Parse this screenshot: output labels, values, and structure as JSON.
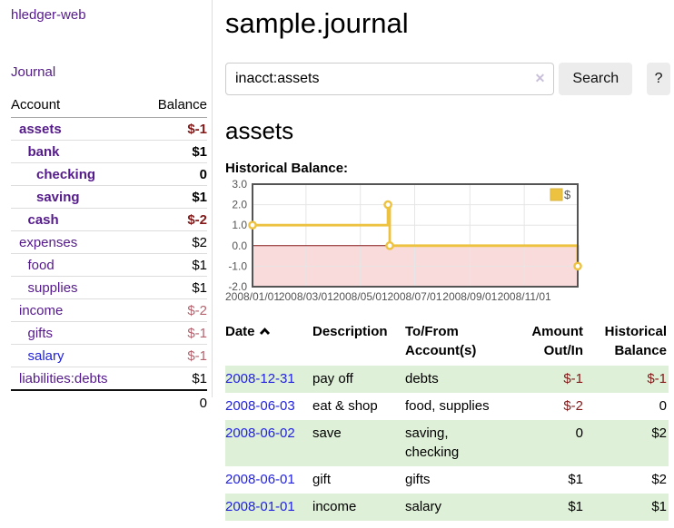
{
  "app": {
    "title": "hledger-web"
  },
  "sidebar": {
    "journal_link": "Journal",
    "accounts": {
      "headers": {
        "account": "Account",
        "balance": "Balance"
      },
      "rows": [
        {
          "name": "assets",
          "balance": "$-1",
          "level": 1,
          "bold": true,
          "neg": "strong"
        },
        {
          "name": "bank",
          "balance": "$1",
          "level": 2,
          "bold": true,
          "neg": "none"
        },
        {
          "name": "checking",
          "balance": "0",
          "level": 3,
          "bold": true,
          "neg": "none"
        },
        {
          "name": "saving",
          "balance": "$1",
          "level": 3,
          "bold": true,
          "neg": "none"
        },
        {
          "name": "cash",
          "balance": "$-2",
          "level": 2,
          "bold": true,
          "neg": "strong"
        },
        {
          "name": "expenses",
          "balance": "$2",
          "level": 1,
          "bold": false,
          "neg": "none"
        },
        {
          "name": "food",
          "balance": "$1",
          "level": 2,
          "bold": false,
          "neg": "none"
        },
        {
          "name": "supplies",
          "balance": "$1",
          "level": 2,
          "bold": false,
          "neg": "none"
        },
        {
          "name": "income",
          "balance": "$-2",
          "level": 1,
          "bold": false,
          "neg": "soft"
        },
        {
          "name": "gifts",
          "balance": "$-1",
          "level": 2,
          "bold": false,
          "neg": "soft"
        },
        {
          "name": "salary",
          "balance": "$-1",
          "level": 2,
          "bold": false,
          "neg": "soft",
          "link_color": "blue"
        },
        {
          "name": "liabilities:debts",
          "balance": "$1",
          "level": 1,
          "bold": false,
          "neg": "none"
        }
      ],
      "total": "0"
    }
  },
  "main": {
    "title": "sample.journal",
    "search": {
      "value": "inacct:assets",
      "clear_icon": "✕",
      "button_label": "Search",
      "help_label": "?"
    },
    "account_heading": "assets",
    "chart_label": "Historical Balance:",
    "register": {
      "headers": {
        "date": "Date",
        "description": "Description",
        "tofrom": "To/From Account(s)",
        "amount": "Amount Out/In",
        "balance": "Historical Balance"
      },
      "rows": [
        {
          "date": "2008-12-31",
          "description": "pay off",
          "accounts": "debts",
          "amount": "$-1",
          "amount_neg": true,
          "balance": "$-1",
          "balance_neg": true
        },
        {
          "date": "2008-06-03",
          "description": "eat & shop",
          "accounts": "food, supplies",
          "amount": "$-2",
          "amount_neg": true,
          "balance": "0",
          "balance_neg": false
        },
        {
          "date": "2008-06-02",
          "description": "save",
          "accounts": "saving, checking",
          "amount": "0",
          "amount_neg": false,
          "balance": "$2",
          "balance_neg": false
        },
        {
          "date": "2008-06-01",
          "description": "gift",
          "accounts": "gifts",
          "amount": "$1",
          "amount_neg": false,
          "balance": "$2",
          "balance_neg": false
        },
        {
          "date": "2008-01-01",
          "description": "income",
          "accounts": "salary",
          "amount": "$1",
          "amount_neg": false,
          "balance": "$1",
          "balance_neg": false
        }
      ]
    }
  },
  "chart_data": {
    "type": "line",
    "step": true,
    "title": "Historical Balance:",
    "xlim": [
      "2008-01-01",
      "2008-12-31"
    ],
    "ylim": [
      -2,
      3
    ],
    "x_ticks": [
      "2008/01/01",
      "2008/03/01",
      "2008/05/01",
      "2008/07/01",
      "2008/09/01",
      "2008/11/01"
    ],
    "y_ticks": [
      "3.0",
      "2.0",
      "1.0",
      "0.0",
      "-1.0",
      "-2.0"
    ],
    "series": [
      {
        "name": "$",
        "color": "#edc240",
        "points": [
          [
            "2008-01-01",
            1
          ],
          [
            "2008-06-01",
            2
          ],
          [
            "2008-06-03",
            0
          ],
          [
            "2008-12-31",
            -1
          ]
        ]
      }
    ],
    "legend": {
      "label": "$",
      "position": "top-right"
    },
    "grid": true,
    "colors": {
      "grid": "#e6e6e6",
      "border": "#545454",
      "axis_text": "#545454",
      "negative_region": "#fadbdb",
      "zero_line": "#8b1a1a",
      "marker_fill": "#ffffff",
      "legend_swatch_border": "#d6b545"
    }
  }
}
